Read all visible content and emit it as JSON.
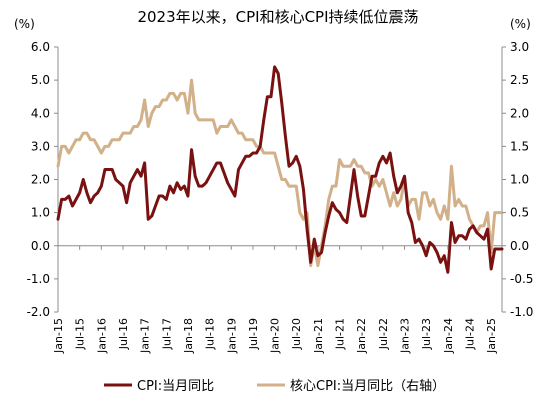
{
  "chart_data": {
    "type": "line",
    "title": "2023年以来，CPI和核心CPI持续低位震荡",
    "left_axis": {
      "unit": "(%)",
      "ylim": [
        -2.0,
        6.0
      ],
      "ticks": [
        "6.0",
        "5.0",
        "4.0",
        "3.0",
        "2.0",
        "1.0",
        "0.0",
        "-1.0",
        "-2.0"
      ]
    },
    "right_axis": {
      "unit": "(%)",
      "ylim": [
        -1.0,
        3.0
      ],
      "ticks": [
        "3.0",
        "2.5",
        "2.0",
        "1.5",
        "1.0",
        "0.5",
        "0.0",
        "-0.5",
        "-1.0"
      ]
    },
    "x_ticks": [
      "Jan-15",
      "Jul-15",
      "Jan-16",
      "Jul-16",
      "Jan-17",
      "Jul-17",
      "Jan-18",
      "Jul-18",
      "Jan-19",
      "Jul-19",
      "Jan-20",
      "Jul-20",
      "Jan-21",
      "Jul-21",
      "Jan-22",
      "Jul-22",
      "Jan-23",
      "Jul-23",
      "Jan-24",
      "Jul-24",
      "Jan-25"
    ],
    "grid": false,
    "legend_position": "bottom",
    "colors": {
      "cpi": "#7a1111",
      "core_cpi": "#d2b089",
      "axis": "#8c8c8c"
    },
    "series": [
      {
        "name": "CPI:当月同比",
        "axis": "left",
        "values": [
          0.8,
          1.4,
          1.4,
          1.5,
          1.2,
          1.4,
          1.6,
          2.0,
          1.6,
          1.3,
          1.5,
          1.6,
          1.8,
          2.3,
          2.3,
          2.3,
          2.0,
          1.9,
          1.8,
          1.3,
          1.9,
          2.1,
          2.3,
          2.1,
          2.5,
          0.8,
          0.9,
          1.2,
          1.5,
          1.5,
          1.4,
          1.8,
          1.6,
          1.9,
          1.7,
          1.8,
          1.5,
          2.9,
          2.1,
          1.8,
          1.8,
          1.9,
          2.1,
          2.3,
          2.5,
          2.5,
          2.2,
          1.9,
          1.7,
          1.5,
          2.3,
          2.5,
          2.7,
          2.7,
          2.8,
          2.8,
          3.0,
          3.8,
          4.5,
          4.5,
          5.4,
          5.2,
          4.3,
          3.3,
          2.4,
          2.5,
          2.7,
          2.4,
          1.7,
          0.5,
          -0.5,
          0.2,
          -0.3,
          -0.2,
          0.4,
          0.9,
          1.3,
          1.1,
          1.0,
          0.8,
          0.7,
          1.5,
          2.3,
          1.5,
          0.9,
          0.9,
          1.5,
          2.1,
          2.1,
          2.5,
          2.7,
          2.5,
          2.8,
          2.1,
          1.6,
          1.8,
          2.1,
          1.0,
          0.7,
          0.1,
          0.2,
          0.0,
          -0.3,
          0.1,
          0.0,
          -0.2,
          -0.5,
          -0.3,
          -0.8,
          0.7,
          0.1,
          0.3,
          0.3,
          0.2,
          0.5,
          0.6,
          0.4,
          0.3,
          0.2,
          0.5,
          -0.7,
          -0.1,
          -0.1,
          -0.1
        ],
        "start": "Jan-15"
      },
      {
        "name": "核心CPI:当月同比（右轴）",
        "axis": "right",
        "values": [
          1.2,
          1.5,
          1.5,
          1.4,
          1.5,
          1.6,
          1.6,
          1.7,
          1.7,
          1.6,
          1.6,
          1.5,
          1.4,
          1.5,
          1.5,
          1.6,
          1.6,
          1.6,
          1.7,
          1.7,
          1.7,
          1.8,
          1.8,
          1.9,
          2.2,
          1.8,
          2.0,
          2.1,
          2.1,
          2.2,
          2.2,
          2.3,
          2.3,
          2.2,
          2.3,
          2.3,
          2.0,
          2.5,
          2.0,
          1.9,
          1.9,
          1.9,
          1.9,
          1.9,
          1.7,
          1.8,
          1.8,
          1.8,
          1.9,
          1.8,
          1.7,
          1.7,
          1.6,
          1.6,
          1.6,
          1.5,
          1.5,
          1.4,
          1.4,
          1.4,
          1.4,
          1.2,
          1.0,
          1.0,
          0.9,
          0.9,
          0.9,
          0.5,
          0.4,
          0.5,
          -0.3,
          0.0,
          -0.3,
          0.0,
          0.3,
          0.7,
          0.9,
          0.9,
          1.3,
          1.2,
          1.2,
          1.2,
          1.3,
          1.2,
          1.2,
          1.1,
          1.1,
          0.9,
          1.0,
          0.9,
          1.0,
          0.8,
          0.6,
          0.8,
          0.6,
          0.7,
          1.0,
          0.6,
          0.7,
          0.7,
          0.4,
          0.8,
          0.8,
          0.6,
          0.7,
          0.5,
          0.4,
          0.6,
          0.4,
          1.2,
          0.6,
          0.7,
          0.6,
          0.6,
          0.4,
          0.3,
          0.2,
          0.3,
          0.3,
          0.5,
          -0.1,
          0.5,
          0.5,
          0.5
        ],
        "start": "Jan-15"
      }
    ]
  }
}
